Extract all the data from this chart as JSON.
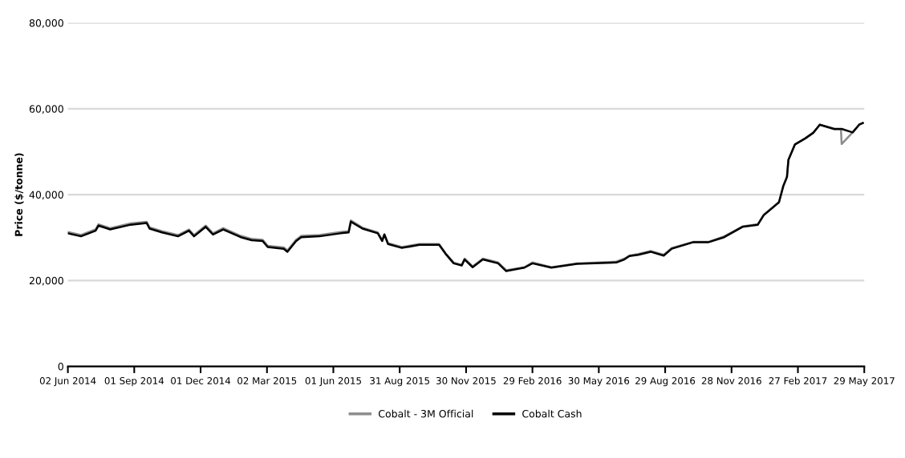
{
  "chart_data": {
    "type": "line",
    "ylabel": "Price ($/tonne)",
    "x": [
      "2014-06-02",
      "2014-06-20",
      "2014-07-10",
      "2014-07-14",
      "2014-07-30",
      "2014-08-27",
      "2014-09-18",
      "2014-09-22",
      "2014-10-09",
      "2014-10-31",
      "2014-11-15",
      "2014-11-22",
      "2014-12-08",
      "2014-12-18",
      "2015-01-01",
      "2015-01-25",
      "2015-02-09",
      "2015-02-24",
      "2015-03-03",
      "2015-03-25",
      "2015-03-30",
      "2015-04-11",
      "2015-04-18",
      "2015-05-13",
      "2015-06-11",
      "2015-06-22",
      "2015-06-25",
      "2015-07-11",
      "2015-08-01",
      "2015-08-07",
      "2015-08-10",
      "2015-08-15",
      "2015-09-03",
      "2015-09-27",
      "2015-10-24",
      "2015-11-02",
      "2015-11-13",
      "2015-11-24",
      "2015-11-28",
      "2015-12-09",
      "2015-12-23",
      "2016-01-13",
      "2016-01-24",
      "2016-02-18",
      "2016-02-29",
      "2016-03-26",
      "2016-04-30",
      "2016-06-23",
      "2016-07-04",
      "2016-07-11",
      "2016-07-23",
      "2016-08-09",
      "2016-08-27",
      "2016-09-07",
      "2016-10-06",
      "2016-10-27",
      "2016-11-18",
      "2016-12-13",
      "2017-01-03",
      "2017-01-11",
      "2017-02-01",
      "2017-02-07",
      "2017-02-12",
      "2017-02-14",
      "2017-02-23",
      "2017-03-09",
      "2017-03-20",
      "2017-03-29",
      "2017-04-18",
      "2017-04-27",
      "2017-04-28",
      "2017-05-13",
      "2017-05-22",
      "2017-05-27"
    ],
    "series": [
      {
        "name": "Cobalt - 3M Official",
        "color": "#8c8c8c",
        "values": [
          31300,
          30600,
          31900,
          33100,
          32200,
          33300,
          33700,
          32400,
          31500,
          30600,
          31900,
          30600,
          32800,
          31000,
          32200,
          30400,
          29700,
          29500,
          28100,
          27700,
          27000,
          29500,
          30400,
          30600,
          31300,
          31500,
          34000,
          32300,
          31200,
          29400,
          30800,
          28700,
          27800,
          28500,
          28500,
          26300,
          24200,
          23600,
          25100,
          23300,
          25100,
          24200,
          22400,
          23100,
          24200,
          23100,
          24000,
          24400,
          25100,
          25800,
          26200,
          26900,
          26000,
          27600,
          29000,
          29000,
          30300,
          32600,
          33100,
          35300,
          38300,
          42100,
          44200,
          48200,
          51700,
          53100,
          54400,
          56300,
          55200,
          55200,
          51800,
          54500,
          56300,
          56700
        ]
      },
      {
        "name": "Cobalt Cash",
        "color": "#000000",
        "values": [
          31000,
          30300,
          31600,
          32800,
          31900,
          33000,
          33400,
          32100,
          31200,
          30300,
          31600,
          30300,
          32500,
          30700,
          31900,
          30100,
          29400,
          29200,
          27800,
          27400,
          26700,
          29200,
          30100,
          30300,
          31000,
          31200,
          33700,
          32100,
          31000,
          29200,
          30700,
          28500,
          27600,
          28300,
          28300,
          26200,
          24000,
          23500,
          24900,
          23100,
          24900,
          24000,
          22200,
          23000,
          24000,
          23000,
          23900,
          24200,
          24900,
          25700,
          26000,
          26700,
          25800,
          27400,
          28900,
          28900,
          30100,
          32500,
          33000,
          35200,
          38200,
          42000,
          44100,
          48100,
          51700,
          53100,
          54400,
          56300,
          55300,
          55300,
          55300,
          54500,
          56300,
          56700
        ]
      }
    ],
    "xlim": [
      "2014-06-02",
      "2017-05-29"
    ],
    "xticks": [
      {
        "value": "2014-06-02",
        "label": "02 Jun 2014"
      },
      {
        "value": "2014-09-01",
        "label": "01 Sep 2014"
      },
      {
        "value": "2014-12-01",
        "label": "01 Dec 2014"
      },
      {
        "value": "2015-03-02",
        "label": "02 Mar 2015"
      },
      {
        "value": "2015-06-01",
        "label": "01 Jun 2015"
      },
      {
        "value": "2015-08-31",
        "label": "31 Aug 2015"
      },
      {
        "value": "2015-11-30",
        "label": "30 Nov 2015"
      },
      {
        "value": "2016-02-29",
        "label": "29 Feb 2016"
      },
      {
        "value": "2016-05-30",
        "label": "30 May 2016"
      },
      {
        "value": "2016-08-29",
        "label": "29 Aug 2016"
      },
      {
        "value": "2016-11-28",
        "label": "28 Nov 2016"
      },
      {
        "value": "2017-02-27",
        "label": "27 Feb 2017"
      },
      {
        "value": "2017-05-29",
        "label": "29 May 2017"
      }
    ],
    "ylim": [
      0,
      80000
    ],
    "yticks": [
      {
        "value": 0,
        "label": "0"
      },
      {
        "value": 20000,
        "label": "20,000"
      },
      {
        "value": 40000,
        "label": "40,000"
      },
      {
        "value": 60000,
        "label": "60,000"
      },
      {
        "value": 80000,
        "label": "80,000"
      }
    ],
    "grid": "y",
    "legend": "bottom",
    "marker": "none",
    "line_style": "solid"
  }
}
